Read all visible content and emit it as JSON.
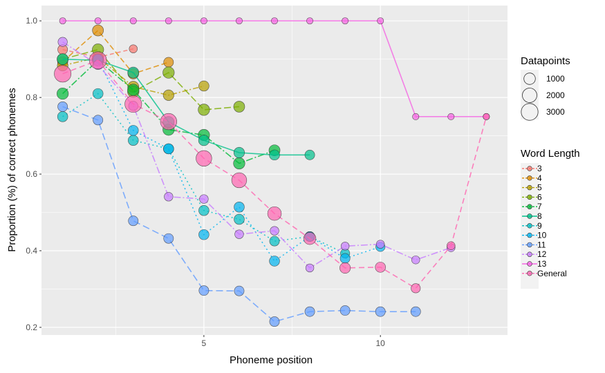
{
  "chart_data": {
    "type": "line",
    "xlabel": "Phoneme position",
    "ylabel": "Proportion (%) of correct phonemes",
    "xlim": [
      0.4,
      13.6
    ],
    "ylim": [
      0.18,
      1.04
    ],
    "xticks": [
      5,
      10
    ],
    "yticks": [
      0.2,
      0.4,
      0.6,
      0.8,
      1.0
    ],
    "ytick_labels": [
      "0.2",
      "0.4",
      "0.6",
      "0.8",
      "1.0"
    ],
    "grid": true,
    "legend_size_title": "Datapoints",
    "legend_size_entries": [
      {
        "label": "1000",
        "value": 1000
      },
      {
        "label": "2000",
        "value": 2000
      },
      {
        "label": "3000",
        "value": 3000
      }
    ],
    "legend_color_title": "Word Length",
    "series": [
      {
        "name": "3",
        "color": "#F8766D",
        "dash": "6,4",
        "points": [
          [
            1,
            0.925,
            600
          ],
          [
            2,
            0.905,
            600
          ],
          [
            3,
            0.927,
            300
          ]
        ]
      },
      {
        "name": "4",
        "color": "#DE8C00",
        "dash": "8,4",
        "points": [
          [
            1,
            0.893,
            700
          ],
          [
            2,
            0.975,
            900
          ],
          [
            3,
            0.862,
            800
          ],
          [
            4,
            0.892,
            600
          ]
        ]
      },
      {
        "name": "5",
        "color": "#B79F00",
        "dash": "8,3,2,3",
        "points": [
          [
            1,
            0.883,
            800
          ],
          [
            2,
            0.905,
            900
          ],
          [
            3,
            0.828,
            900
          ],
          [
            4,
            0.806,
            800
          ],
          [
            5,
            0.83,
            700
          ]
        ]
      },
      {
        "name": "6",
        "color": "#7CAE00",
        "dash": "10,4",
        "points": [
          [
            1,
            0.9,
            900
          ],
          [
            2,
            0.925,
            1000
          ],
          [
            3,
            0.815,
            1000
          ],
          [
            4,
            0.865,
            1000
          ],
          [
            5,
            0.768,
            1000
          ],
          [
            6,
            0.776,
            900
          ]
        ]
      },
      {
        "name": "7",
        "color": "#00BA38",
        "dash": "10,3,2,3",
        "points": [
          [
            1,
            0.81,
            1000
          ],
          [
            2,
            0.897,
            1000
          ],
          [
            3,
            0.82,
            1000
          ],
          [
            4,
            0.716,
            1000
          ],
          [
            5,
            0.702,
            1000
          ],
          [
            6,
            0.628,
            1000
          ],
          [
            7,
            0.662,
            900
          ]
        ]
      },
      {
        "name": "8",
        "color": "#00C08B",
        "dash": "",
        "points": [
          [
            1,
            0.9,
            900
          ],
          [
            2,
            0.897,
            1000
          ],
          [
            3,
            0.865,
            900
          ],
          [
            4,
            0.736,
            900
          ],
          [
            5,
            0.688,
            800
          ],
          [
            6,
            0.656,
            800
          ],
          [
            7,
            0.65,
            700
          ],
          [
            8,
            0.65,
            600
          ]
        ]
      },
      {
        "name": "9",
        "color": "#00BFC4",
        "dash": "2,4",
        "points": [
          [
            1,
            0.75,
            700
          ],
          [
            2,
            0.81,
            700
          ],
          [
            3,
            0.688,
            700
          ],
          [
            4,
            0.666,
            700
          ],
          [
            5,
            0.505,
            700
          ],
          [
            6,
            0.482,
            700
          ],
          [
            7,
            0.425,
            600
          ],
          [
            8,
            0.437,
            600
          ],
          [
            9,
            0.393,
            500
          ]
        ]
      },
      {
        "name": "10",
        "color": "#00B4F0",
        "dash": "2,4",
        "points": [
          [
            2,
            0.9,
            700
          ],
          [
            3,
            0.714,
            700
          ],
          [
            4,
            0.666,
            700
          ],
          [
            5,
            0.442,
            700
          ],
          [
            6,
            0.514,
            700
          ],
          [
            7,
            0.373,
            700
          ],
          [
            8,
            0.437,
            600
          ],
          [
            9,
            0.38,
            600
          ],
          [
            10,
            0.41,
            500
          ]
        ]
      },
      {
        "name": "11",
        "color": "#619CFF",
        "dash": "10,5",
        "points": [
          [
            1,
            0.776,
            600
          ],
          [
            2,
            0.741,
            600
          ],
          [
            3,
            0.478,
            600
          ],
          [
            4,
            0.432,
            600
          ],
          [
            5,
            0.296,
            600
          ],
          [
            6,
            0.295,
            600
          ],
          [
            7,
            0.215,
            600
          ],
          [
            8,
            0.241,
            600
          ],
          [
            9,
            0.244,
            600
          ],
          [
            10,
            0.241,
            600
          ],
          [
            11,
            0.241,
            600
          ]
        ]
      },
      {
        "name": "12",
        "color": "#C77CFF",
        "dash": "10,3,2,3",
        "points": [
          [
            1,
            0.945,
            500
          ],
          [
            2,
            0.885,
            500
          ],
          [
            3,
            0.778,
            500
          ],
          [
            4,
            0.541,
            400
          ],
          [
            5,
            0.535,
            400
          ],
          [
            6,
            0.443,
            400
          ],
          [
            7,
            0.452,
            400
          ],
          [
            8,
            0.355,
            300
          ],
          [
            9,
            0.412,
            300
          ],
          [
            10,
            0.417,
            300
          ],
          [
            11,
            0.376,
            300
          ],
          [
            12,
            0.408,
            300
          ]
        ]
      },
      {
        "name": "13",
        "color": "#F564E3",
        "dash": "",
        "points": [
          [
            1,
            1.0,
            100
          ],
          [
            2,
            1.0,
            100
          ],
          [
            3,
            1.0,
            100
          ],
          [
            4,
            1.0,
            100
          ],
          [
            5,
            1.0,
            100
          ],
          [
            6,
            1.0,
            100
          ],
          [
            7,
            1.0,
            100
          ],
          [
            8,
            1.0,
            100
          ],
          [
            9,
            1.0,
            100
          ],
          [
            10,
            1.0,
            100
          ],
          [
            11,
            0.75,
            100
          ],
          [
            12,
            0.75,
            100
          ],
          [
            13,
            0.75,
            100
          ]
        ]
      },
      {
        "name": "General",
        "color": "#FF64B0",
        "dash": "8,5",
        "points": [
          [
            1,
            0.862,
            3000
          ],
          [
            2,
            0.897,
            3200
          ],
          [
            3,
            0.783,
            3000
          ],
          [
            4,
            0.737,
            2800
          ],
          [
            5,
            0.641,
            2500
          ],
          [
            6,
            0.584,
            2200
          ],
          [
            7,
            0.497,
            1700
          ],
          [
            8,
            0.432,
            1200
          ],
          [
            9,
            0.355,
            800
          ],
          [
            10,
            0.357,
            700
          ],
          [
            11,
            0.302,
            500
          ],
          [
            12,
            0.413,
            300
          ],
          [
            13,
            0.75,
            100
          ]
        ]
      }
    ]
  }
}
